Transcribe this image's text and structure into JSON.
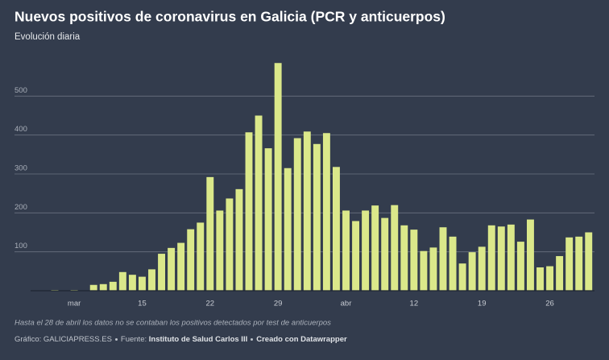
{
  "chart_data": {
    "type": "bar",
    "title": "Nuevos positivos de coronavirus en Galicia (PCR y anticuerpos)",
    "subtitle": "Evolución diaria",
    "categories": [
      null,
      null,
      "mar",
      null,
      null,
      null,
      null,
      null,
      null,
      "15",
      null,
      null,
      null,
      null,
      null,
      null,
      "22",
      null,
      null,
      null,
      null,
      null,
      null,
      "29",
      null,
      null,
      null,
      null,
      null,
      null,
      "abr",
      null,
      null,
      null,
      null,
      null,
      null,
      "12",
      null,
      null,
      null,
      null,
      null,
      null,
      "19",
      null,
      null,
      null,
      null,
      null,
      null,
      "26",
      null,
      null,
      null,
      null
    ],
    "values": [
      2,
      0,
      2,
      0,
      15,
      17,
      23,
      48,
      41,
      36,
      55,
      95,
      110,
      123,
      158,
      175,
      292,
      206,
      237,
      261,
      407,
      450,
      366,
      585,
      315,
      392,
      409,
      377,
      405,
      318,
      206,
      179,
      206,
      219,
      187,
      220,
      168,
      157,
      102,
      111,
      163,
      139,
      70,
      99,
      113,
      168,
      165,
      170,
      126,
      183,
      60,
      63,
      89,
      137,
      139,
      150
    ],
    "color": "#dbe88a",
    "ylim": [
      0,
      600
    ],
    "yticks": [
      100,
      200,
      300,
      400,
      500
    ],
    "grid": true,
    "note": "Hasta el 28 de abril los datos no se contaban los positivos detectados por test de anticuerpos",
    "byline": "Gráfico: GALICIAPRESS.ES",
    "source_label": "Fuente:",
    "source": "Instituto de Salud Carlos III",
    "credit": "Creado con Datawrapper"
  }
}
